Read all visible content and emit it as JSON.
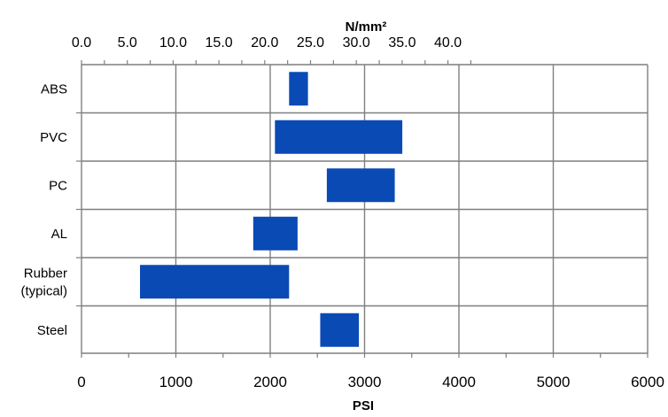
{
  "chart_data": {
    "type": "bar",
    "orientation": "horizontal-range",
    "title": "",
    "categories": [
      "ABS",
      "PVC",
      "PC",
      "AL",
      "Rubber (typical)",
      "Steel"
    ],
    "category_lines": [
      [
        "ABS"
      ],
      [
        "PVC"
      ],
      [
        "PC"
      ],
      [
        "AL"
      ],
      [
        "Rubber",
        "(typical)"
      ],
      [
        "Steel"
      ]
    ],
    "series": [
      {
        "color": "#0a4ab5",
        "ranges": [
          [
            2200,
            2400
          ],
          [
            2050,
            3400
          ],
          [
            2600,
            3320
          ],
          [
            1820,
            2290
          ],
          [
            620,
            2200
          ],
          [
            2530,
            2940
          ]
        ]
      }
    ],
    "x_primary": {
      "label": "PSI",
      "ticks": [
        "0",
        "1000",
        "2000",
        "3000",
        "4000",
        "5000",
        "6000"
      ],
      "range": [
        0,
        6000
      ]
    },
    "x_secondary": {
      "label": "N/mm²",
      "ticks": [
        "0.0",
        "5.0",
        "10.0",
        "15.0",
        "20.0",
        "25.0",
        "30.0",
        "35.0",
        "40.0"
      ],
      "range": [
        0,
        41.37
      ]
    },
    "grid": true,
    "legend": "none"
  }
}
